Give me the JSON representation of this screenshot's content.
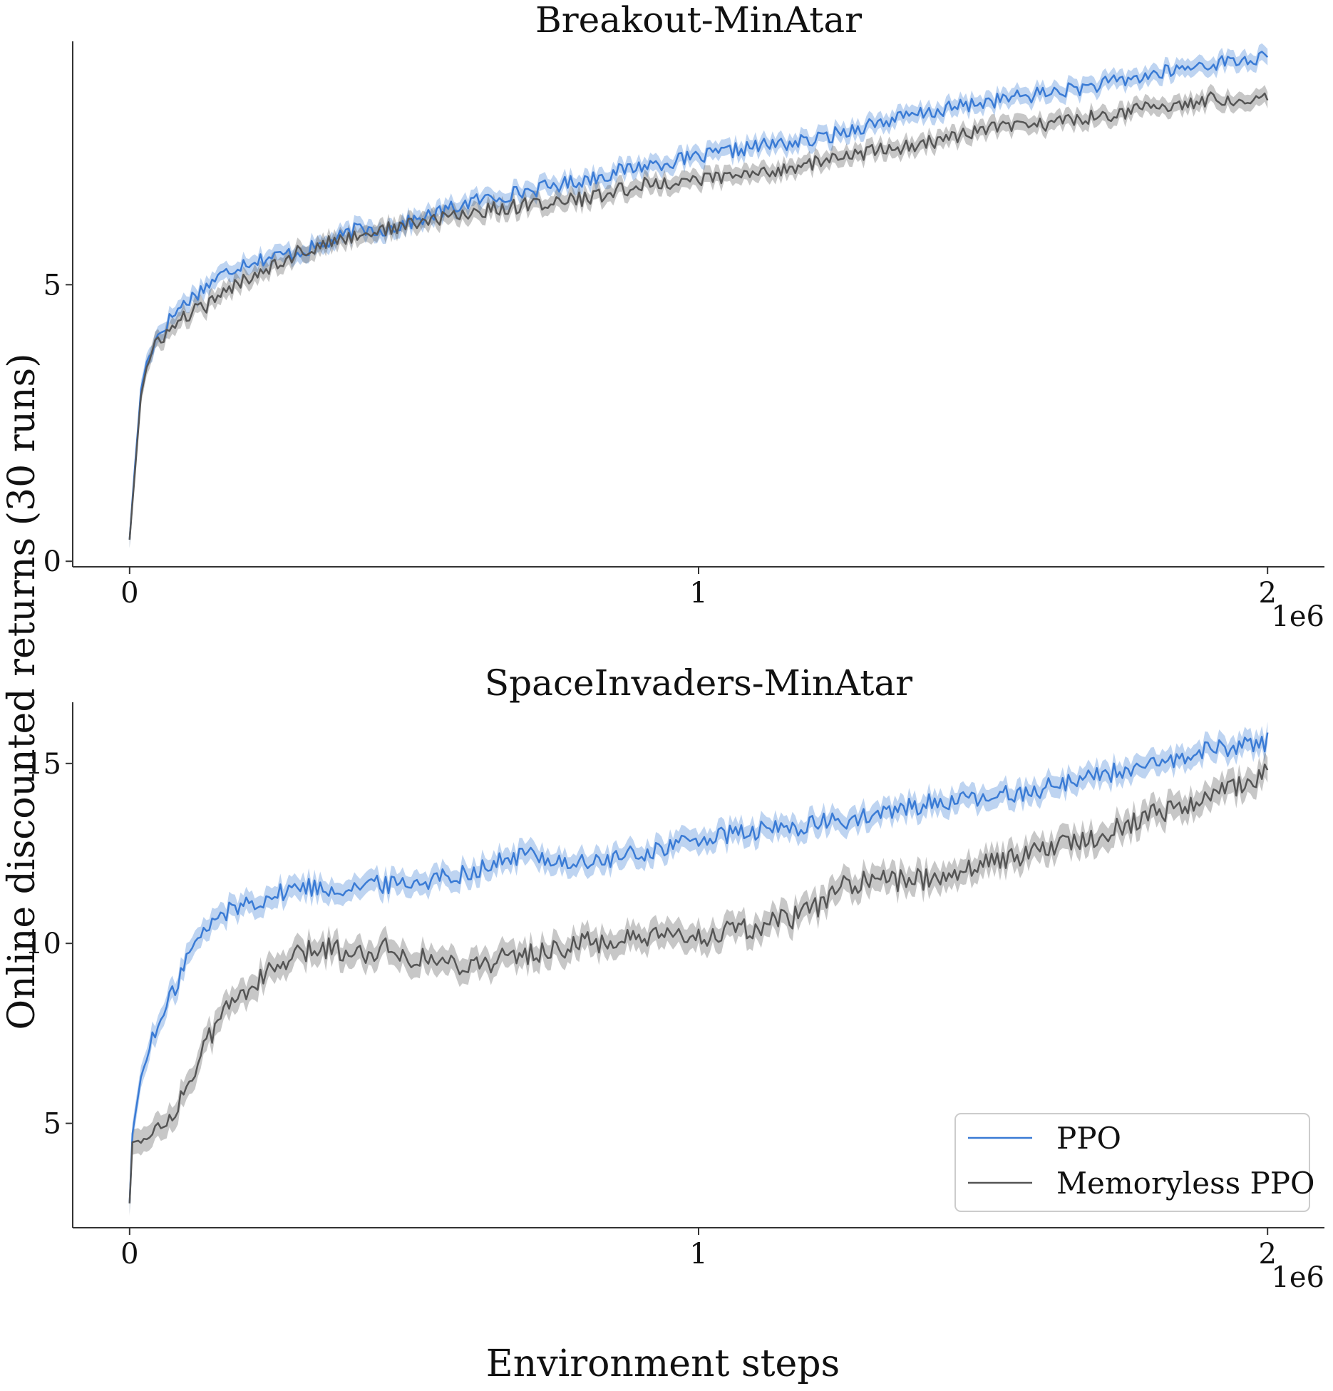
{
  "figure": {
    "ylabel": "Online discounted returns (30 runs)",
    "xlabel": "Environment steps"
  },
  "colors": {
    "ppo": "#3a7bd5",
    "memoryless": "#555555"
  },
  "legend": {
    "placement": "lower-right",
    "entries": [
      "PPO",
      "Memoryless PPO"
    ]
  },
  "chart_data": [
    {
      "type": "line",
      "title": "Breakout-MinAtar",
      "x_offset_label": "1e6",
      "xlim": [
        -0.1,
        2.1
      ],
      "ylim": [
        -0.1,
        9.4
      ],
      "xticks": [
        0,
        1,
        2
      ],
      "xtick_labels": [
        "0",
        "1",
        "2"
      ],
      "yticks": [
        0,
        5
      ],
      "ytick_labels": [
        "0",
        "5"
      ],
      "grid": false,
      "series": [
        {
          "name": "PPO",
          "color": "#3a7bd5",
          "band": 0.15,
          "x": [
            0,
            0.01,
            0.02,
            0.03,
            0.05,
            0.08,
            0.1,
            0.15,
            0.2,
            0.25,
            0.3,
            0.35,
            0.4,
            0.45,
            0.5,
            0.6,
            0.7,
            0.8,
            0.9,
            1.0,
            1.1,
            1.2,
            1.3,
            1.4,
            1.5,
            1.6,
            1.7,
            1.8,
            1.9,
            2.0
          ],
          "y": [
            0.4,
            1.8,
            3.1,
            3.6,
            4.1,
            4.5,
            4.7,
            5.1,
            5.4,
            5.5,
            5.6,
            5.75,
            6.0,
            6.0,
            6.15,
            6.5,
            6.7,
            6.9,
            7.15,
            7.3,
            7.5,
            7.6,
            7.9,
            8.1,
            8.3,
            8.45,
            8.6,
            8.8,
            9.0,
            9.1
          ]
        },
        {
          "name": "Memoryless PPO",
          "color": "#555555",
          "band": 0.15,
          "x": [
            0,
            0.01,
            0.02,
            0.03,
            0.05,
            0.08,
            0.1,
            0.15,
            0.2,
            0.25,
            0.3,
            0.35,
            0.4,
            0.45,
            0.5,
            0.6,
            0.7,
            0.8,
            0.9,
            1.0,
            1.1,
            1.2,
            1.3,
            1.4,
            1.5,
            1.6,
            1.7,
            1.8,
            1.9,
            2.0
          ],
          "y": [
            0.4,
            1.7,
            3.0,
            3.5,
            4.0,
            4.25,
            4.45,
            4.7,
            5.1,
            5.35,
            5.6,
            5.75,
            5.9,
            6.0,
            6.1,
            6.3,
            6.45,
            6.55,
            6.8,
            6.9,
            7.0,
            7.2,
            7.4,
            7.55,
            7.8,
            7.9,
            8.05,
            8.2,
            8.35,
            8.4
          ]
        }
      ]
    },
    {
      "type": "line",
      "title": "SpaceInvaders-MinAtar",
      "x_offset_label": "1e6",
      "xlim": [
        -0.1,
        2.1
      ],
      "ylim": [
        2.1,
        16.7
      ],
      "xticks": [
        0,
        1,
        2
      ],
      "xtick_labels": [
        "0",
        "1",
        "2"
      ],
      "yticks": [
        5,
        10,
        15
      ],
      "ytick_labels": [
        "5",
        "10",
        "15"
      ],
      "grid": false,
      "series": [
        {
          "name": "PPO",
          "color": "#3a7bd5",
          "band": 0.3,
          "x": [
            0,
            0.005,
            0.02,
            0.04,
            0.06,
            0.08,
            0.1,
            0.13,
            0.16,
            0.2,
            0.25,
            0.3,
            0.35,
            0.4,
            0.5,
            0.6,
            0.7,
            0.75,
            0.8,
            0.9,
            1.0,
            1.1,
            1.2,
            1.3,
            1.4,
            1.5,
            1.6,
            1.7,
            1.8,
            1.9,
            2.0
          ],
          "y": [
            2.8,
            4.7,
            6.3,
            7.3,
            8.0,
            8.8,
            9.6,
            10.3,
            10.8,
            11.1,
            11.3,
            11.6,
            11.5,
            11.6,
            11.7,
            12.0,
            12.5,
            12.3,
            12.2,
            12.5,
            12.9,
            13.1,
            13.3,
            13.5,
            13.9,
            14.0,
            14.3,
            14.7,
            14.9,
            15.4,
            15.6
          ]
        },
        {
          "name": "Memoryless PPO",
          "color": "#555555",
          "band": 0.35,
          "x": [
            0,
            0.005,
            0.02,
            0.04,
            0.06,
            0.08,
            0.1,
            0.13,
            0.16,
            0.2,
            0.25,
            0.3,
            0.35,
            0.4,
            0.45,
            0.5,
            0.55,
            0.6,
            0.7,
            0.8,
            0.9,
            1.0,
            1.1,
            1.2,
            1.25,
            1.3,
            1.4,
            1.5,
            1.6,
            1.7,
            1.8,
            1.9,
            2.0
          ],
          "y": [
            2.8,
            4.5,
            4.5,
            4.7,
            5.0,
            5.4,
            6.0,
            7.0,
            8.0,
            8.7,
            9.2,
            9.7,
            9.9,
            9.7,
            9.9,
            9.6,
            9.5,
            9.4,
            9.7,
            10.0,
            10.1,
            10.2,
            10.4,
            10.9,
            11.6,
            11.7,
            11.8,
            12.2,
            12.6,
            13.0,
            13.6,
            14.1,
            14.7
          ]
        }
      ]
    }
  ]
}
